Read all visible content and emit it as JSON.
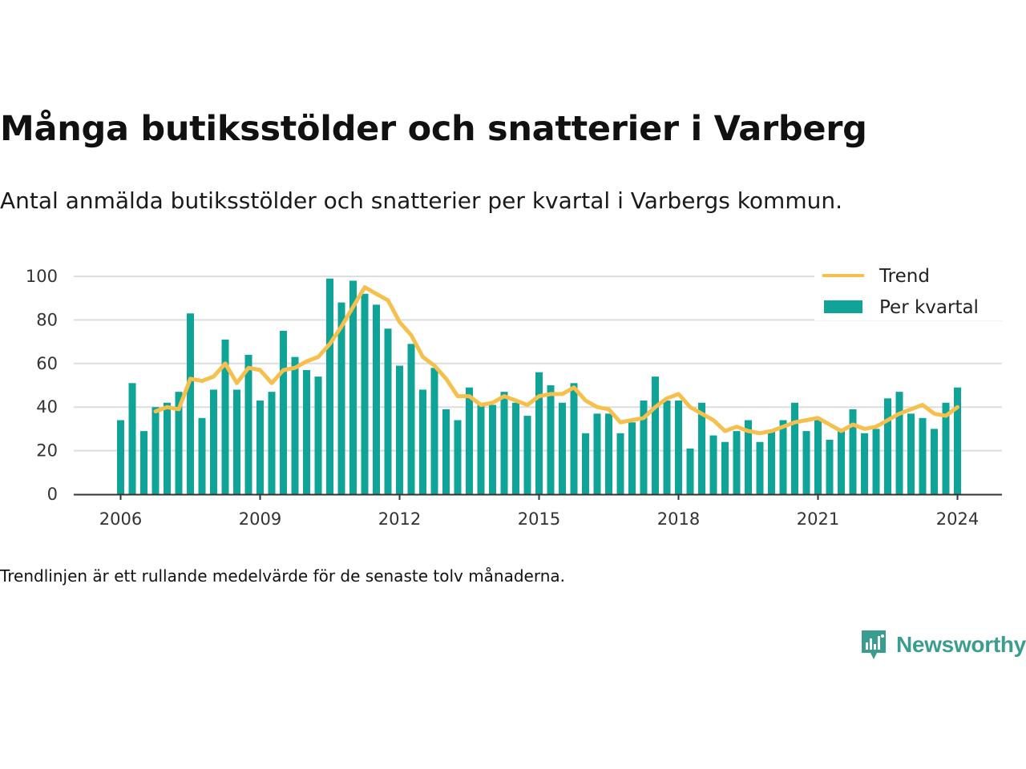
{
  "header": {
    "title": "Många butiksstölder och snatterier i Varberg",
    "subtitle": "Antal anmälda butiksstölder och snatterier per kvartal i Varbergs kommun."
  },
  "footer": {
    "note": "Trendlinjen är ett rullande medelvärde för de senaste tolv månaderna.",
    "brand": "Newsworthy"
  },
  "colors": {
    "bars": "#0fa497",
    "trend": "#f6c04e",
    "grid": "#dddddd",
    "axis": "#333333",
    "brand": "#3a9d8f"
  },
  "chart_data": {
    "type": "bar",
    "x_unit": "quarter",
    "x_start": "2006 Q1",
    "x_end": "2024 Q1",
    "ylim": [
      0,
      100
    ],
    "yticks": [
      0,
      20,
      40,
      60,
      80,
      100
    ],
    "xticks": [
      "2006",
      "2009",
      "2012",
      "2015",
      "2018",
      "2021",
      "2024"
    ],
    "xlabel": "",
    "ylabel": "",
    "grid": "horizontal",
    "legend_position": "top-right",
    "series": [
      {
        "name": "Per kvartal",
        "kind": "bar",
        "values": [
          34,
          51,
          29,
          40,
          42,
          47,
          83,
          35,
          48,
          71,
          48,
          64,
          43,
          47,
          75,
          63,
          57,
          54,
          99,
          88,
          98,
          92,
          87,
          76,
          59,
          69,
          48,
          58,
          39,
          34,
          49,
          41,
          41,
          47,
          42,
          36,
          56,
          50,
          42,
          51,
          28,
          37,
          37,
          28,
          33,
          43,
          54,
          43,
          43,
          21,
          42,
          27,
          24,
          29,
          34,
          24,
          29,
          34,
          42,
          29,
          34,
          25,
          29,
          39,
          28,
          30,
          44,
          47,
          37,
          35,
          30,
          42,
          49
        ]
      },
      {
        "name": "Trend",
        "kind": "line",
        "values": [
          null,
          null,
          null,
          38,
          40,
          39,
          53,
          52,
          54,
          60,
          51,
          58,
          57,
          51,
          57,
          58,
          61,
          63,
          69,
          77,
          86,
          95,
          92,
          89,
          79,
          73,
          63,
          59,
          53,
          45,
          45,
          41,
          42,
          45,
          43,
          41,
          45,
          46,
          46,
          49,
          43,
          40,
          39,
          33,
          34,
          35,
          40,
          44,
          46,
          40,
          37,
          34,
          29,
          31,
          29,
          28,
          29,
          31,
          33,
          34,
          35,
          32,
          29,
          32,
          30,
          31,
          34,
          37,
          39,
          41,
          37,
          36,
          40
        ]
      }
    ]
  }
}
